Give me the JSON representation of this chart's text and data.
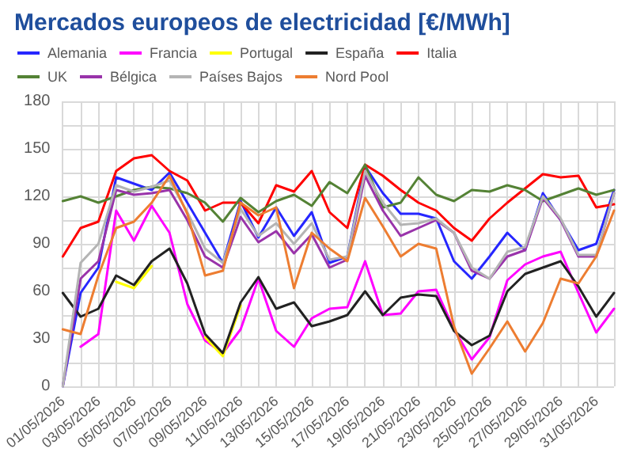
{
  "chart_data": {
    "type": "line",
    "title": "Mercados europeos de electricidad [€/MWh]",
    "categories": [
      "01/05/2026",
      null,
      "03/05/2026",
      null,
      "05/05/2026",
      null,
      "07/05/2026",
      null,
      "09/05/2026",
      null,
      "11/05/2026",
      null,
      "13/05/2026",
      null,
      "15/05/2026",
      null,
      "17/05/2026",
      null,
      "19/05/2026",
      null,
      "21/05/2026",
      null,
      "23/05/2026",
      null,
      "25/05/2026",
      null,
      "27/05/2026",
      null,
      "29/05/2026",
      null,
      "31/05/2026",
      null
    ],
    "series": [
      {
        "name": "Alemania",
        "color": "#2626ff",
        "values": [
          0,
          59,
          75,
          132,
          128,
          124,
          135,
          116,
          97,
          78,
          117,
          94,
          113,
          95,
          110,
          78,
          82,
          139,
          122,
          109,
          109,
          106,
          79,
          68,
          82,
          97,
          86,
          122,
          105,
          86,
          90,
          124
        ]
      },
      {
        "name": "Francia",
        "color": "#ff00ff",
        "values": [
          null,
          25,
          33,
          111,
          92,
          114,
          97,
          52,
          29,
          21,
          36,
          68,
          35,
          25,
          43,
          49,
          50,
          79,
          45,
          46,
          60,
          61,
          36,
          17,
          31,
          67,
          77,
          82,
          85,
          59,
          34,
          49
        ]
      },
      {
        "name": "Portugal",
        "color": "#ffff00",
        "values": [
          null,
          null,
          null,
          66,
          62,
          76,
          null,
          null,
          31,
          19,
          51,
          null,
          null,
          null,
          null,
          null,
          null,
          null,
          null,
          null,
          null,
          null,
          null,
          null,
          null,
          null,
          null,
          null,
          null,
          null,
          null,
          null
        ]
      },
      {
        "name": "España",
        "color": "#222222",
        "values": [
          59,
          44,
          49,
          70,
          64,
          79,
          87,
          65,
          33,
          21,
          53,
          69,
          49,
          53,
          38,
          41,
          45,
          60,
          45,
          56,
          58,
          57,
          35,
          26,
          32,
          60,
          71,
          75,
          79,
          63,
          44,
          59
        ]
      },
      {
        "name": "Italia",
        "color": "#ff0000",
        "values": [
          82,
          100,
          104,
          136,
          144,
          146,
          136,
          130,
          111,
          116,
          116,
          103,
          127,
          123,
          136,
          110,
          100,
          140,
          133,
          124,
          116,
          111,
          100,
          92,
          106,
          116,
          125,
          134,
          132,
          133,
          113,
          115
        ]
      },
      {
        "name": "UK",
        "color": "#548235",
        "values": [
          117,
          120,
          116,
          120,
          124,
          126,
          125,
          122,
          116,
          104,
          119,
          110,
          117,
          121,
          114,
          129,
          122,
          140,
          113,
          116,
          132,
          121,
          117,
          124,
          123,
          127,
          124,
          117,
          121,
          125,
          121,
          124
        ]
      },
      {
        "name": "Bélgica",
        "color": "#9933aa",
        "values": [
          0,
          68,
          79,
          124,
          121,
          122,
          124,
          105,
          82,
          75,
          107,
          91,
          98,
          84,
          96,
          75,
          80,
          133,
          111,
          95,
          100,
          105,
          97,
          73,
          68,
          82,
          86,
          119,
          105,
          82,
          82,
          122
        ]
      },
      {
        "name": "Países Bajos",
        "color": "#b4b4b4",
        "values": [
          0,
          78,
          90,
          127,
          123,
          126,
          130,
          110,
          87,
          78,
          112,
          95,
          103,
          90,
          103,
          80,
          82,
          136,
          116,
          102,
          103,
          106,
          97,
          75,
          68,
          85,
          88,
          120,
          106,
          83,
          83,
          122
        ]
      },
      {
        "name": "Nord Pool",
        "color": "#ed7d31",
        "values": [
          36,
          33,
          70,
          100,
          104,
          116,
          133,
          109,
          70,
          73,
          116,
          108,
          113,
          62,
          97,
          87,
          79,
          119,
          101,
          82,
          90,
          87,
          38,
          8,
          24,
          41,
          22,
          40,
          68,
          65,
          82,
          111
        ]
      }
    ],
    "ylim": [
      0,
      180
    ],
    "yticks": [
      0,
      {
        "value": 15,
        "label": null
      },
      30,
      {
        "value": 45,
        "label": null
      },
      60,
      {
        "value": 75,
        "label": null
      },
      90,
      {
        "value": 105,
        "label": null
      },
      120,
      {
        "value": 135,
        "label": null
      },
      150,
      {
        "value": 165,
        "label": null
      },
      180
    ],
    "grid": true,
    "legend": "top",
    "marker": "none",
    "line_style": "solid"
  }
}
